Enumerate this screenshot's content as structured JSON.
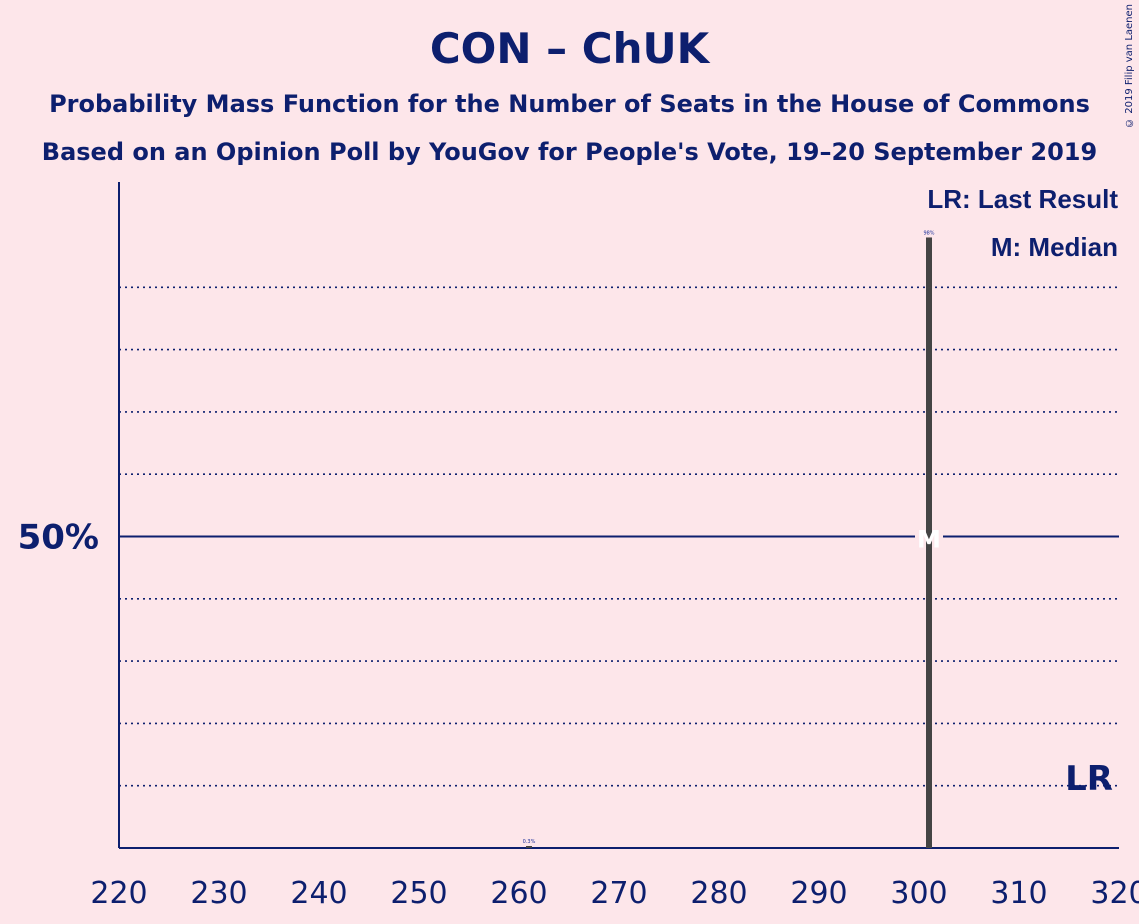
{
  "title": "CON – ChUK",
  "subtitle_line1": "Probability Mass Function for the Number of Seats in the House of Commons",
  "subtitle_line2": "Based on an Opinion Poll by YouGov for People's Vote, 19–20 September 2019",
  "copyright": "© 2019 Filip van Laenen",
  "legend": {
    "last_result": "LR: Last Result",
    "median": "M: Median"
  },
  "colors": {
    "background": "#fde6ea",
    "text": "#0d1f6e",
    "bar": "#444444",
    "label_color": "#1a2f9a"
  },
  "chart_data": {
    "type": "bar",
    "xlim": [
      220,
      320
    ],
    "ylim": [
      0,
      100
    ],
    "x_ticks": [
      220,
      230,
      240,
      250,
      260,
      270,
      280,
      290,
      300,
      310,
      320
    ],
    "y_tick_label": "50%",
    "y_tick_value": 50,
    "gridlines": [
      10,
      20,
      30,
      40,
      60,
      70,
      80,
      90
    ],
    "bars": [
      {
        "seats": 261,
        "value": 0.3,
        "label": "0.3%"
      },
      {
        "seats": 301,
        "value": 98,
        "label": "98%"
      }
    ],
    "median_seats": 301,
    "median_marker": "M",
    "last_result_seats": 317,
    "last_result_marker": "LR"
  }
}
